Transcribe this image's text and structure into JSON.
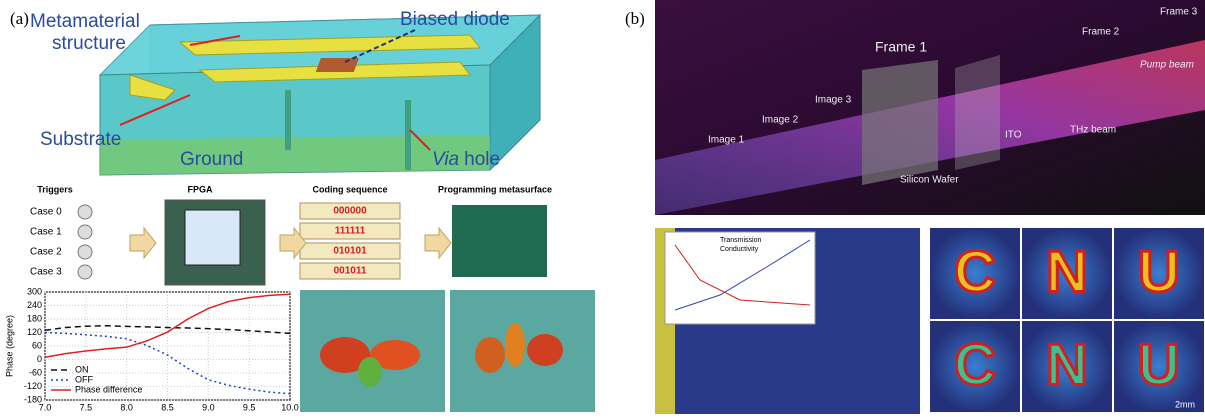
{
  "panel_a": {
    "label": "(a)",
    "structure": {
      "metamaterial": "Metamaterial structure",
      "diode": "Biased diode",
      "substrate": "Substrate",
      "ground": "Ground",
      "via_prefix": "Via",
      "via_suffix": "hole"
    },
    "flow": {
      "headers": [
        "Triggers",
        "FPGA",
        "Coding sequence",
        "Programming metasurface"
      ],
      "cases": [
        "Case 0",
        "Case 1",
        "Case 2",
        "Case 3"
      ],
      "codes": [
        "000000",
        "111111",
        "010101",
        "001011"
      ]
    }
  },
  "chart_data": {
    "type": "line",
    "ylabel": "Phase (degree)",
    "x": [
      7.0,
      7.25,
      7.5,
      7.75,
      8.0,
      8.25,
      8.5,
      8.75,
      9.0,
      9.25,
      9.5,
      9.75,
      10.0
    ],
    "series": [
      {
        "name": "ON",
        "color": "#111111",
        "dash": "6,4",
        "values": [
          130,
          142,
          148,
          150,
          147,
          145,
          142,
          140,
          137,
          133,
          128,
          122,
          116
        ]
      },
      {
        "name": "OFF",
        "color": "#2040c0",
        "dash": "2,3",
        "values": [
          120,
          116,
          110,
          103,
          92,
          62,
          20,
          -40,
          -90,
          -115,
          -132,
          -145,
          -152
        ]
      },
      {
        "name": "Phase difference",
        "color": "#e02020",
        "dash": "",
        "values": [
          10,
          26,
          38,
          47,
          55,
          83,
          122,
          180,
          227,
          258,
          275,
          285,
          290
        ]
      }
    ],
    "xlim": [
      7,
      10
    ],
    "ylim": [
      -180,
      300
    ],
    "xticks": [
      {
        "value": 7,
        "label": "7.0"
      },
      {
        "value": 7.5,
        "label": "7.5"
      },
      {
        "value": 8,
        "label": "8.0"
      },
      {
        "value": 8.5,
        "label": "8.5"
      },
      {
        "value": 9,
        "label": "9.0"
      },
      {
        "value": 9.5,
        "label": "9.5"
      },
      {
        "value": 10,
        "label": "10.0"
      }
    ],
    "yticks": [
      -180,
      -120,
      -60,
      0,
      60,
      120,
      180,
      240,
      300
    ],
    "grid": true,
    "legend": "lower-left"
  },
  "panel_b": {
    "label": "(b)",
    "beam": {
      "frame1": "Frame 1",
      "frame2": "Frame 2",
      "frame3": "Frame 3",
      "pump": "Pump beam",
      "thz": "THz beam",
      "ito": "ITO",
      "wafer": "Silicon Wafer",
      "images": [
        "Image 1",
        "Image 2",
        "Image 3"
      ]
    },
    "inset": {
      "transmission": "Transmission",
      "conductivity": "Conductivity"
    },
    "letters": [
      "C",
      "N",
      "U"
    ],
    "scale": "2mm"
  }
}
